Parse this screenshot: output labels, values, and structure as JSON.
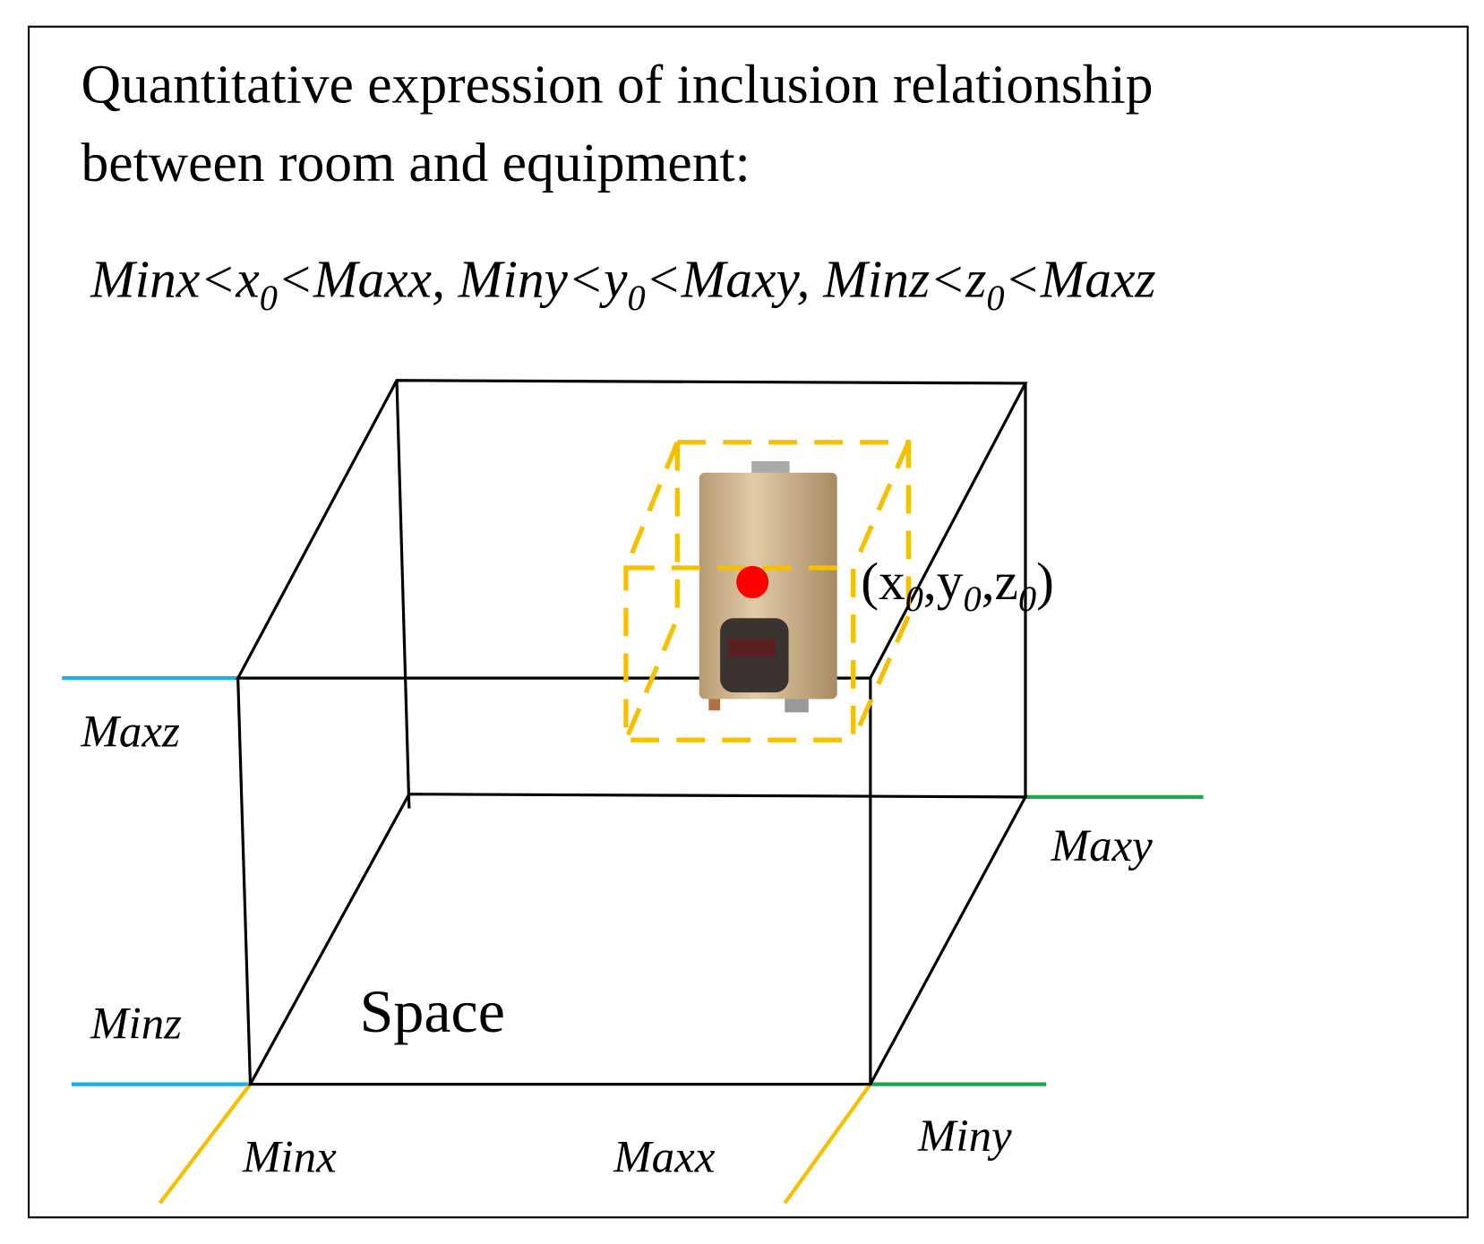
{
  "header": {
    "title_lines": [
      "Quantitative expression of inclusion relationship",
      "between room and equipment:"
    ]
  },
  "formula": {
    "parts": [
      "Minx<x",
      "0",
      "<Maxx, Miny<y",
      "0",
      "<Maxy, Minz<z",
      "0",
      "<Maxz"
    ]
  },
  "diagram": {
    "space_label": "Space",
    "point_label": {
      "parts": [
        "(x",
        "0",
        ",y",
        "0",
        ",z",
        "0",
        ")"
      ]
    },
    "axis_labels": {
      "maxz": "Maxz",
      "minz": "Minz",
      "minx": "Minx",
      "maxx": "Maxx",
      "miny": "Miny",
      "maxy": "Maxy"
    }
  }
}
